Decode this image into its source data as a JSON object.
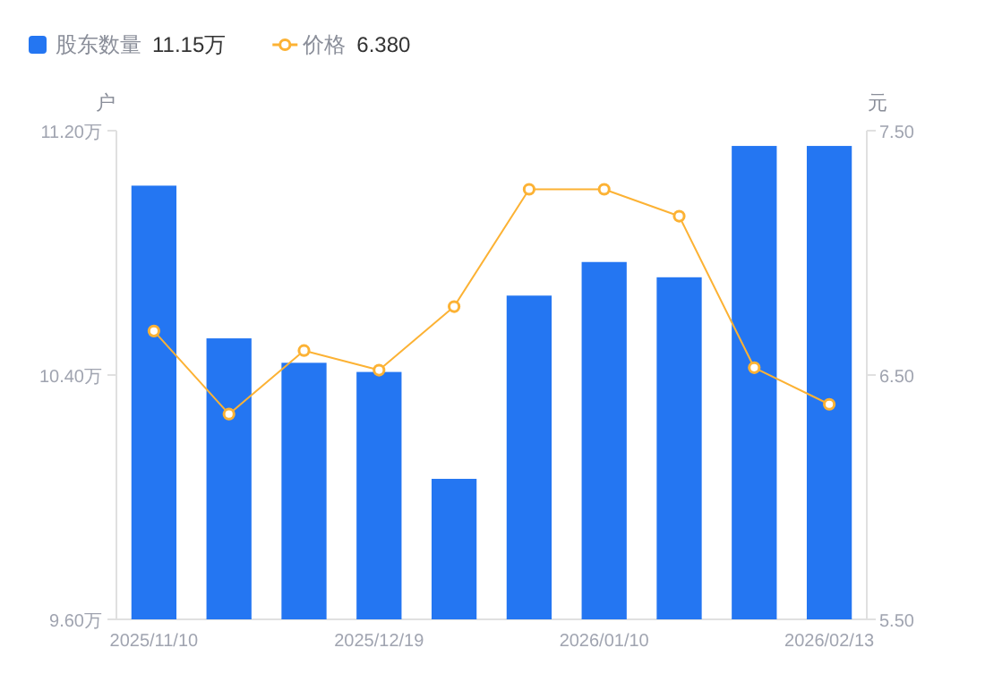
{
  "chart_data": {
    "type": "bar",
    "categories": [
      "2025/11/10",
      null,
      null,
      "2025/12/19",
      null,
      null,
      "2026/01/10",
      null,
      null,
      "2026/02/13"
    ],
    "series": [
      {
        "name": "股东数量",
        "color": "#2476f2",
        "values": [
          11.02,
          10.52,
          10.44,
          10.41,
          10.06,
          10.66,
          10.77,
          10.72,
          11.15,
          11.15
        ]
      },
      {
        "name": "价格",
        "type": "line",
        "axis": "y2",
        "color": "#fcb234",
        "marker": "circle",
        "values": [
          6.68,
          6.34,
          6.6,
          6.52,
          6.78,
          7.26,
          7.26,
          7.15,
          6.53,
          6.38
        ]
      }
    ],
    "ylabel": "户",
    "y2label": "元",
    "ylim": [
      9.6,
      11.2
    ],
    "yticks": [
      {
        "value": 9.6,
        "label": "9.60万"
      },
      {
        "value": 10.4,
        "label": "10.40万"
      },
      {
        "value": 11.2,
        "label": "11.20万"
      }
    ],
    "y2lim": [
      5.5,
      7.5
    ],
    "y2ticks": [
      {
        "value": 5.5,
        "label": "5.50"
      },
      {
        "value": 6.5,
        "label": "6.50"
      },
      {
        "value": 7.5,
        "label": "7.50"
      }
    ],
    "annotations": [
      "11.15万",
      "6.380"
    ],
    "legend": "top left",
    "grid": false
  }
}
